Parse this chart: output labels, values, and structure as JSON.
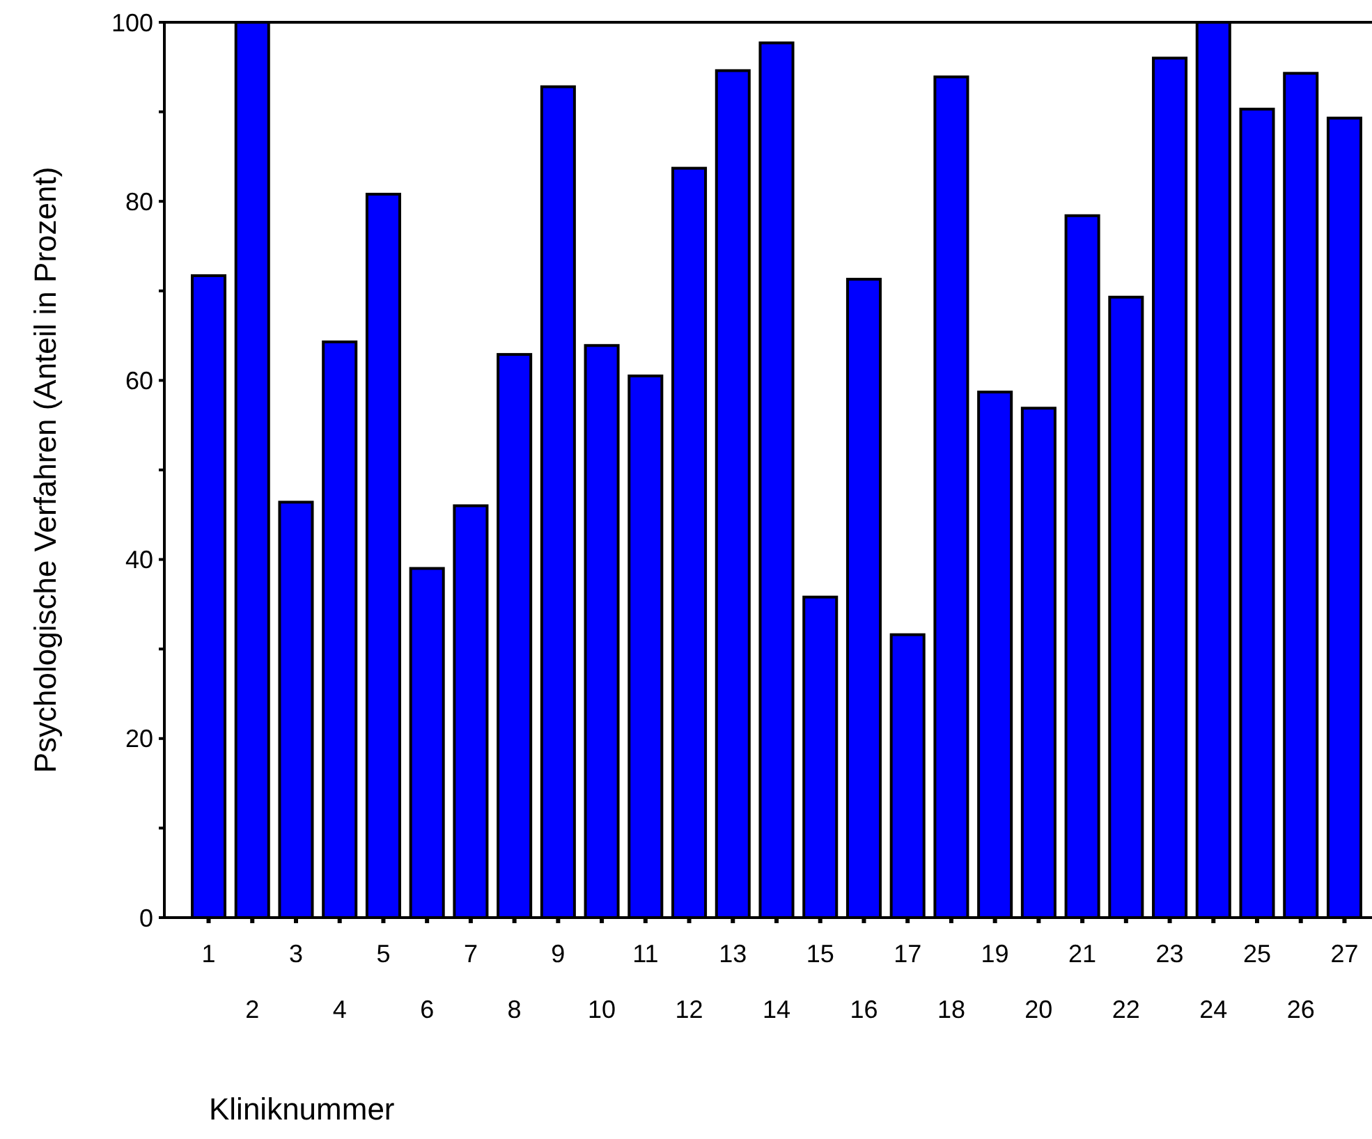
{
  "chart_data": {
    "type": "bar",
    "xlabel": "Kliniknummer",
    "ylabel": "Psychologische Verfahren (Anteil in Prozent)",
    "categories": [
      "1",
      "2",
      "3",
      "4",
      "5",
      "6",
      "7",
      "8",
      "9",
      "10",
      "11",
      "12",
      "13",
      "14",
      "15",
      "16",
      "17",
      "18",
      "19",
      "20",
      "21",
      "22",
      "23",
      "24",
      "25",
      "26",
      "27"
    ],
    "values": [
      71.7,
      100,
      46.4,
      64.3,
      80.8,
      39.0,
      46.0,
      62.9,
      92.8,
      63.9,
      60.5,
      83.7,
      94.6,
      97.7,
      35.8,
      71.3,
      31.6,
      93.9,
      58.7,
      56.9,
      78.4,
      69.3,
      96.0,
      100,
      90.3,
      94.3,
      89.3
    ],
    "color": "#0000ff",
    "ylim": [
      0,
      100
    ],
    "yticks": [
      0,
      {
        "value": 10,
        "label": null
      },
      20,
      {
        "value": 30,
        "label": null
      },
      40,
      {
        "value": 50,
        "label": null
      },
      60,
      {
        "value": 70,
        "label": null
      },
      80,
      {
        "value": 90,
        "label": null
      },
      100
    ],
    "grid": false
  }
}
